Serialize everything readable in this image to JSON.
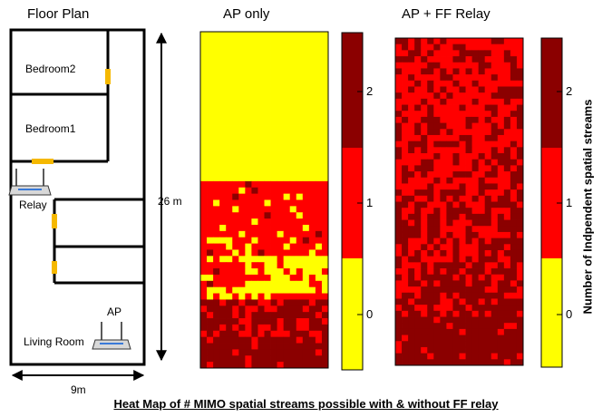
{
  "floor_plan": {
    "title": "Floor Plan",
    "rooms": [
      "Bedroom2",
      "Bedroom1",
      "Living Room"
    ],
    "relay_label": "Relay",
    "ap_label": "AP",
    "height_label": "26 m",
    "width_label": "9m",
    "colors": {
      "wall": "#000000",
      "door": "#f5b800"
    }
  },
  "caption": "Heat Map of # MIMO spatial streams possible with & without FF relay",
  "colorbar": {
    "label": "Number of Indpendent spatial streams",
    "ticks": [
      "0",
      "1",
      "2"
    ]
  },
  "chart_data": [
    {
      "type": "heatmap",
      "title": "AP only",
      "value_range": [
        0,
        2
      ],
      "colors": {
        "0": "#ffff00",
        "1": "#ff0000",
        "2": "#8b0000"
      },
      "grid": {
        "rows": 54,
        "cols": 20
      },
      "description": "0 streams over upper half, 1 stream in middle band, 2 streams near AP at bottom"
    },
    {
      "type": "heatmap",
      "title": "AP + FF Relay",
      "value_range": [
        0,
        2
      ],
      "colors": {
        "0": "#ffff00",
        "1": "#ff0000",
        "2": "#8b0000"
      },
      "grid": {
        "rows": 54,
        "cols": 20
      },
      "description": "mostly 1 and 2 streams everywhere; no 0-stream region"
    }
  ]
}
